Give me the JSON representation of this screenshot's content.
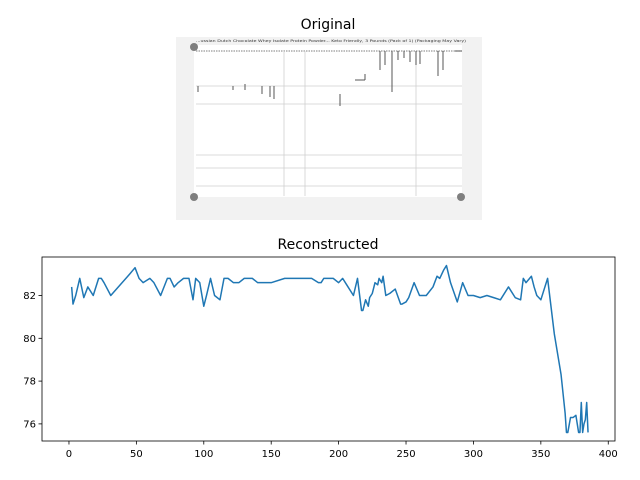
{
  "figure": {
    "top_title": "Original",
    "bottom_title": "Reconstructed",
    "original_image_caption": "...ussian Dutch Chocolate Whey Isolate Protein Powder... Keto Friendly, 3 Pounds (Pack of 1) (Packaging May Vary)"
  },
  "colors": {
    "line": "#1f77b4",
    "axes": "#000000",
    "panel_bg": "#f2f2f2",
    "dot": "#7f7f7f"
  },
  "chart_data": [
    {
      "type": "image",
      "title": "Original"
    },
    {
      "type": "line",
      "title": "Reconstructed",
      "xlabel": "",
      "ylabel": "",
      "xlim": [
        -20,
        405
      ],
      "ylim": [
        75.2,
        83.8
      ],
      "xticks": [
        0,
        50,
        100,
        150,
        200,
        250,
        300,
        350,
        400
      ],
      "yticks": [
        76,
        78,
        80,
        82
      ],
      "grid": false,
      "series": [
        {
          "x": [
            2,
            3,
            5,
            8,
            11,
            14,
            18,
            22,
            24,
            26,
            31,
            45,
            49,
            52,
            55,
            60,
            63,
            68,
            73,
            75,
            78,
            81,
            85,
            89,
            92,
            94,
            97,
            100,
            102,
            105,
            108,
            112,
            115,
            118,
            122,
            126,
            130,
            133,
            136,
            140,
            144,
            150,
            160,
            165,
            170,
            175,
            180,
            185,
            187,
            189,
            192,
            196,
            200,
            203,
            206,
            211,
            214,
            217,
            218,
            220,
            222,
            223,
            225,
            227,
            229,
            230,
            232,
            233,
            235,
            238,
            242,
            246,
            247,
            250,
            252,
            256,
            260,
            265,
            270,
            273,
            275,
            278,
            280,
            283,
            288,
            292,
            296,
            300,
            305,
            310,
            315,
            320,
            326,
            331,
            335,
            337,
            339,
            343,
            345,
            347,
            350,
            355,
            360,
            365,
            368,
            369,
            370,
            372,
            374,
            376,
            377,
            378,
            379,
            380,
            381,
            382,
            383,
            384,
            385
          ],
          "y": [
            82.4,
            81.6,
            82.0,
            82.8,
            81.9,
            82.4,
            82.0,
            82.8,
            82.8,
            82.6,
            82.0,
            83.0,
            83.3,
            82.8,
            82.6,
            82.8,
            82.6,
            82.0,
            82.8,
            82.8,
            82.4,
            82.6,
            82.8,
            82.8,
            81.8,
            82.8,
            82.6,
            81.5,
            82.0,
            82.8,
            82.0,
            81.8,
            82.8,
            82.8,
            82.6,
            82.6,
            82.8,
            82.8,
            82.8,
            82.6,
            82.6,
            82.6,
            82.8,
            82.8,
            82.8,
            82.8,
            82.8,
            82.6,
            82.6,
            82.8,
            82.8,
            82.8,
            82.6,
            82.8,
            82.5,
            82.0,
            82.8,
            81.3,
            81.3,
            81.8,
            81.5,
            81.9,
            82.1,
            82.6,
            82.5,
            82.8,
            82.6,
            82.9,
            82.0,
            82.1,
            82.3,
            81.6,
            81.6,
            81.7,
            81.9,
            82.6,
            82.0,
            82.0,
            82.4,
            82.9,
            82.8,
            83.2,
            83.4,
            82.6,
            81.7,
            82.6,
            82.0,
            82.0,
            81.9,
            82.0,
            81.9,
            81.8,
            82.4,
            81.9,
            81.8,
            82.8,
            82.6,
            82.9,
            82.4,
            82.0,
            81.8,
            82.8,
            80.2,
            78.3,
            76.5,
            75.6,
            75.6,
            76.3,
            76.3,
            76.4,
            76.0,
            75.6,
            75.6,
            77.0,
            75.6,
            76.0,
            76.2,
            77.0,
            75.6
          ]
        }
      ]
    }
  ]
}
